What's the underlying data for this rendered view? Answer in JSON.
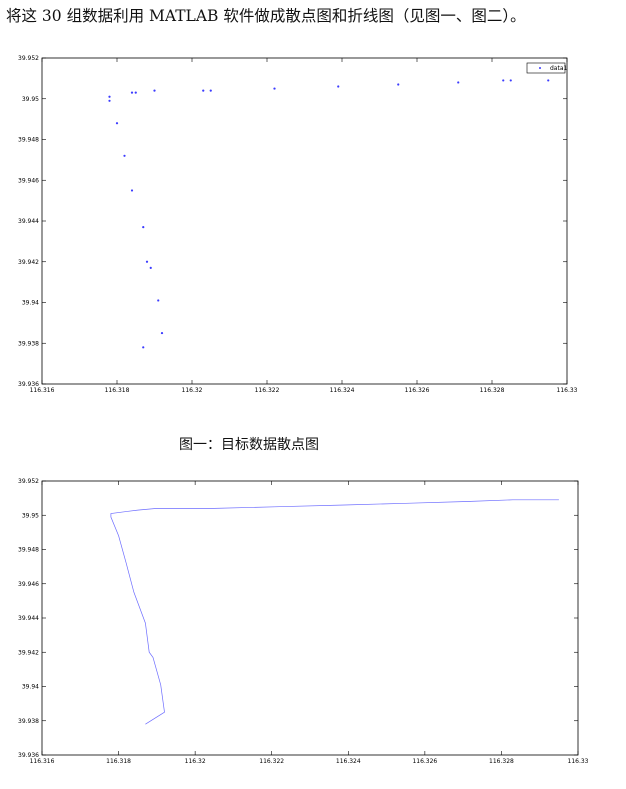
{
  "document": {
    "intro_text": "将这 30 组数据利用 MATLAB 软件做成散点图和折线图（见图一、图二）。",
    "figure1_caption": "图一：目标数据散点图"
  },
  "colors": {
    "series": "#3b3bff",
    "axes": "#000000",
    "background": "#ffffff"
  },
  "chart_data": [
    {
      "type": "scatter",
      "title": "",
      "xlabel": "",
      "ylabel": "",
      "xlim": [
        116.316,
        116.33
      ],
      "ylim": [
        39.936,
        39.952
      ],
      "xticks": [
        "116.316",
        "116.318",
        "116.32",
        "116.322",
        "116.324",
        "116.326",
        "116.328",
        "116.33"
      ],
      "yticks": [
        "39.936",
        "39.938",
        "39.94",
        "39.942",
        "39.944",
        "39.946",
        "39.948",
        "39.95",
        "39.952"
      ],
      "grid": false,
      "legend": "top-right",
      "series": [
        {
          "name": "data1",
          "x": [
            116.3178,
            116.3178,
            116.318,
            116.3182,
            116.3184,
            116.3185,
            116.319,
            116.3203,
            116.3205,
            116.3222,
            116.3239,
            116.3255,
            116.3271,
            116.3283,
            116.3285,
            116.3295,
            116.3184,
            116.3187,
            116.3188,
            116.3189,
            116.3191,
            116.3192,
            116.3187
          ],
          "y": [
            39.9501,
            39.9499,
            39.9488,
            39.9472,
            39.9503,
            39.9503,
            39.9504,
            39.9504,
            39.9504,
            39.9505,
            39.9506,
            39.9507,
            39.9508,
            39.9509,
            39.9509,
            39.9509,
            39.9455,
            39.9437,
            39.942,
            39.9417,
            39.9401,
            39.9385,
            39.9378
          ]
        }
      ]
    },
    {
      "type": "line",
      "title": "",
      "xlabel": "",
      "ylabel": "",
      "xlim": [
        116.316,
        116.33
      ],
      "ylim": [
        39.936,
        39.952
      ],
      "xticks": [
        "116.316",
        "116.318",
        "116.32",
        "116.322",
        "116.324",
        "116.326",
        "116.328",
        "116.33"
      ],
      "yticks": [
        "39.936",
        "39.938",
        "39.94",
        "39.942",
        "39.944",
        "39.946",
        "39.948",
        "39.95",
        "39.952"
      ],
      "grid": false,
      "series": [
        {
          "x": [
            116.3187,
            116.3192,
            116.3191,
            116.3189,
            116.3188,
            116.3187,
            116.3184,
            116.3182,
            116.318,
            116.3178,
            116.3178,
            116.3185,
            116.319,
            116.3203,
            116.3205,
            116.3222,
            116.3239,
            116.3255,
            116.3271,
            116.3283,
            116.3285,
            116.3295
          ],
          "y": [
            39.9378,
            39.9385,
            39.9401,
            39.9417,
            39.942,
            39.9437,
            39.9455,
            39.9472,
            39.9488,
            39.9499,
            39.9501,
            39.9503,
            39.9504,
            39.9504,
            39.9504,
            39.9505,
            39.9506,
            39.9507,
            39.9508,
            39.9509,
            39.9509,
            39.9509
          ]
        }
      ]
    }
  ]
}
